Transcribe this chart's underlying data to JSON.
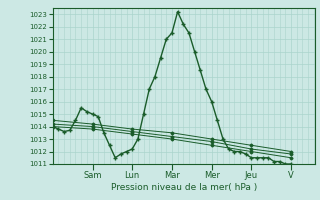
{
  "xlabel": "Pression niveau de la mer( hPa )",
  "bg_color": "#cce8e4",
  "grid_color": "#aad4cc",
  "line_color": "#1a5c2a",
  "ylim": [
    1011,
    1023.5
  ],
  "yticks": [
    1011,
    1012,
    1013,
    1014,
    1015,
    1016,
    1017,
    1018,
    1019,
    1020,
    1021,
    1022,
    1023
  ],
  "day_labels": [
    "Sam",
    "Lun",
    "Mar",
    "Mer",
    "Jeu",
    "V"
  ],
  "day_positions": [
    28,
    56,
    84,
    112,
    140,
    168
  ],
  "xlim": [
    0,
    185
  ],
  "line1_x": [
    0,
    4,
    8,
    12,
    16,
    20,
    24,
    28,
    32,
    36,
    40,
    44,
    48,
    52,
    56,
    60,
    64,
    68,
    72,
    76,
    80,
    84,
    88,
    92,
    96,
    100,
    104,
    108,
    112,
    116,
    120,
    124,
    128,
    132,
    136,
    140,
    144,
    148,
    152,
    156,
    160,
    164,
    168
  ],
  "line1_y": [
    1014.0,
    1013.8,
    1013.6,
    1013.7,
    1014.5,
    1015.5,
    1015.2,
    1015.0,
    1014.8,
    1013.5,
    1012.5,
    1011.5,
    1011.8,
    1012.0,
    1012.2,
    1013.0,
    1015.0,
    1017.0,
    1018.0,
    1019.5,
    1021.0,
    1021.5,
    1023.2,
    1022.2,
    1021.5,
    1020.0,
    1018.5,
    1017.0,
    1016.0,
    1014.5,
    1013.0,
    1012.2,
    1012.0,
    1012.0,
    1011.8,
    1011.5,
    1011.5,
    1011.5,
    1011.5,
    1011.2,
    1011.2,
    1011.0,
    1011.0
  ],
  "line2_x": [
    0,
    28,
    56,
    84,
    112,
    140,
    168
  ],
  "line2_y": [
    1014.5,
    1014.2,
    1013.8,
    1013.5,
    1013.0,
    1012.5,
    1012.0
  ],
  "line3_x": [
    0,
    28,
    56,
    84,
    112,
    140,
    168
  ],
  "line3_y": [
    1014.2,
    1014.0,
    1013.6,
    1013.2,
    1012.8,
    1012.2,
    1011.8
  ],
  "line4_x": [
    0,
    28,
    56,
    84,
    112,
    140,
    168
  ],
  "line4_y": [
    1014.0,
    1013.8,
    1013.4,
    1013.0,
    1012.5,
    1012.0,
    1011.5
  ]
}
